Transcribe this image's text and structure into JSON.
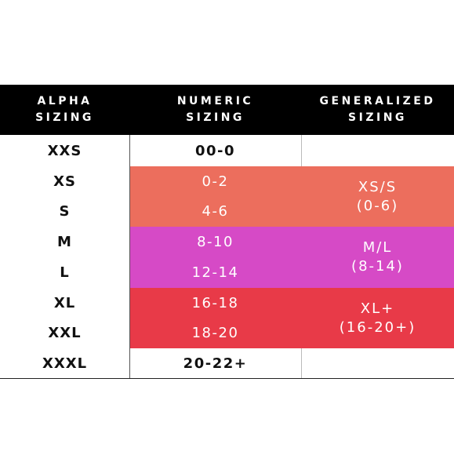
{
  "headers": {
    "alpha": [
      "ALPHA",
      "SIZING"
    ],
    "numeric": [
      "NUMERIC",
      "SIZING"
    ],
    "generalized": [
      "GENERALIZED",
      "SIZING"
    ]
  },
  "rows": [
    {
      "alpha": "XXS",
      "numeric": "00-0"
    },
    {
      "alpha": "XS",
      "numeric": "0-2"
    },
    {
      "alpha": "S",
      "numeric": "4-6"
    },
    {
      "alpha": "M",
      "numeric": "8-10"
    },
    {
      "alpha": "L",
      "numeric": "12-14"
    },
    {
      "alpha": "XL",
      "numeric": "16-18"
    },
    {
      "alpha": "XXL",
      "numeric": "18-20"
    },
    {
      "alpha": "XXXL",
      "numeric": "20-22+"
    }
  ],
  "generalized": [
    {
      "line1": "XS/S",
      "line2": "(0-6)"
    },
    {
      "line1": "M/L",
      "line2": "(8-14)"
    },
    {
      "line1": "XL+",
      "line2": "(16-20+)"
    }
  ],
  "colors": {
    "header": "#000000",
    "orange": "#ec6e5d",
    "magenta": "#d64ac6",
    "red": "#e83a48"
  }
}
